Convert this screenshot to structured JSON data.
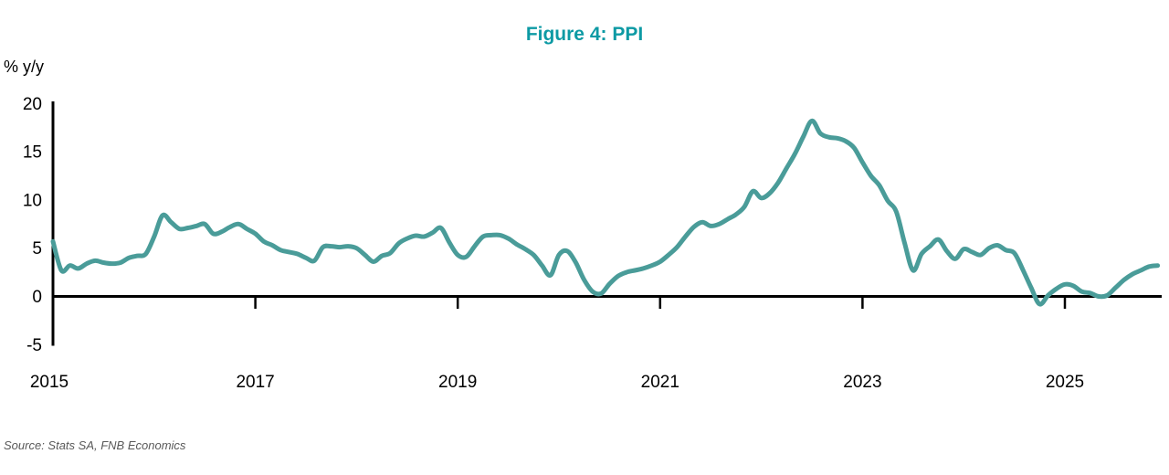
{
  "title": {
    "text": "Figure 4: PPI"
  },
  "axis_unit_label": "% y/y",
  "source": "Source: Stats SA, FNB Economics",
  "colors": {
    "title": "#0d9aa4",
    "line": "#4a9c99",
    "axis": "#000000",
    "source_text": "#595959"
  },
  "chart_data": {
    "type": "line",
    "series_name": "PPI % y/y",
    "frequency": "monthly",
    "start": "2015-01",
    "end": "2025-12",
    "x_tick_labels": [
      "2015",
      "2017",
      "2019",
      "2021",
      "2023",
      "2025"
    ],
    "y_ticks": [
      20,
      15,
      10,
      5,
      0,
      -5
    ],
    "ylim": [
      -5,
      20
    ],
    "grid": false,
    "legend": "none",
    "values": [
      5.7,
      2.7,
      3.2,
      2.9,
      3.4,
      3.7,
      3.5,
      3.4,
      3.5,
      4.0,
      4.2,
      4.4,
      6.2,
      8.4,
      7.7,
      7.0,
      7.1,
      7.3,
      7.5,
      6.5,
      6.7,
      7.2,
      7.5,
      7.0,
      6.5,
      5.7,
      5.3,
      4.8,
      4.6,
      4.4,
      4.0,
      3.7,
      5.1,
      5.2,
      5.1,
      5.2,
      5.0,
      4.3,
      3.6,
      4.2,
      4.5,
      5.5,
      6.0,
      6.3,
      6.2,
      6.6,
      7.1,
      5.6,
      4.3,
      4.1,
      5.2,
      6.2,
      6.35,
      6.35,
      6.0,
      5.4,
      4.9,
      4.3,
      3.2,
      2.2,
      4.3,
      4.7,
      3.5,
      1.7,
      0.5,
      0.3,
      1.3,
      2.1,
      2.5,
      2.7,
      2.9,
      3.2,
      3.6,
      4.3,
      5.1,
      6.2,
      7.2,
      7.7,
      7.3,
      7.5,
      8.0,
      8.5,
      9.3,
      10.9,
      10.2,
      10.7,
      11.8,
      13.3,
      14.8,
      16.6,
      18.2,
      16.9,
      16.5,
      16.4,
      16.1,
      15.4,
      13.9,
      12.5,
      11.5,
      9.9,
      8.8,
      5.5,
      2.7,
      4.4,
      5.2,
      5.9,
      4.7,
      3.9,
      4.9,
      4.6,
      4.3,
      5.0,
      5.3,
      4.8,
      4.5,
      2.8,
      0.9,
      -0.8,
      0.1,
      0.8,
      1.25,
      1.1,
      0.5,
      0.35,
      0.0,
      0.1,
      0.9,
      1.7,
      2.3,
      2.7,
      3.1,
      3.2
    ]
  }
}
